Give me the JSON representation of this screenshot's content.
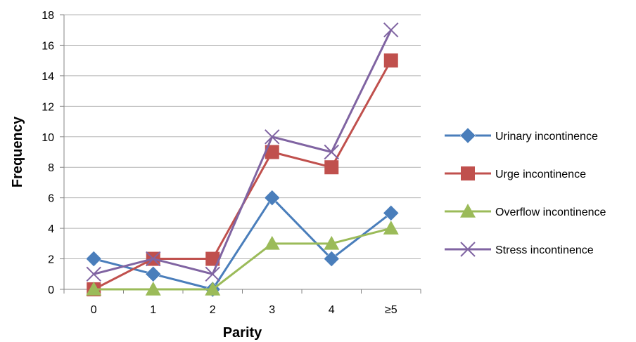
{
  "chart_data": {
    "type": "line",
    "xlabel": "Parity",
    "ylabel": "Frequency",
    "categories": [
      "0",
      "1",
      "2",
      "3",
      "4",
      "≥5"
    ],
    "ylim": [
      0,
      18
    ],
    "yticks": [
      0,
      2,
      4,
      6,
      8,
      10,
      12,
      14,
      16,
      18
    ],
    "grid": "horizontal",
    "legend_position": "right",
    "series": [
      {
        "name": "Urinary incontinence",
        "values": [
          2,
          1,
          0,
          6,
          2,
          5
        ],
        "color": "#4a7ebb",
        "marker": "diamond"
      },
      {
        "name": "Urge incontinence",
        "values": [
          0,
          2,
          2,
          9,
          8,
          15
        ],
        "color": "#c0504d",
        "marker": "square"
      },
      {
        "name": "Overflow incontinence",
        "values": [
          0,
          0,
          0,
          3,
          3,
          4
        ],
        "color": "#9bbb59",
        "marker": "triangle"
      },
      {
        "name": "Stress incontinence",
        "values": [
          1,
          2,
          1,
          10,
          9,
          17
        ],
        "color": "#8064a2",
        "marker": "x"
      }
    ]
  }
}
